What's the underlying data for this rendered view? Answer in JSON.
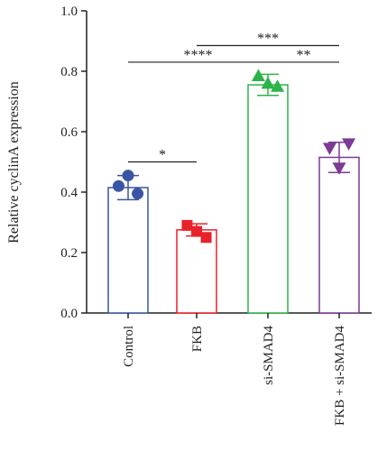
{
  "chart_data": {
    "type": "bar",
    "ylabel": "Relative cyclinA expression",
    "ylim": [
      0,
      1.0
    ],
    "yticks": [
      "0.0",
      "0.2",
      "0.4",
      "0.6",
      "0.8",
      "1.0"
    ],
    "ytick_values": [
      0,
      0.2,
      0.4,
      0.6,
      0.8,
      1.0
    ],
    "categories": [
      "Control",
      "FKB",
      "si-SMAD4",
      "FKB + si-SMAD4"
    ],
    "values": [
      0.415,
      0.275,
      0.755,
      0.515
    ],
    "errors": [
      0.04,
      0.02,
      0.035,
      0.05
    ],
    "colors": [
      "#3a55a6",
      "#e8212b",
      "#2db24a",
      "#7d3a96"
    ],
    "markers": [
      "circle",
      "square",
      "triangle-up",
      "triangle-down"
    ],
    "points": [
      [
        [
          -0.15,
          0.42
        ],
        [
          0.0,
          0.455
        ],
        [
          0.15,
          0.395
        ]
      ],
      [
        [
          -0.15,
          0.29
        ],
        [
          0.0,
          0.27
        ],
        [
          0.15,
          0.25
        ]
      ],
      [
        [
          -0.15,
          0.785
        ],
        [
          0.0,
          0.76
        ],
        [
          0.15,
          0.75
        ]
      ],
      [
        [
          -0.15,
          0.545
        ],
        [
          0.0,
          0.48
        ],
        [
          0.15,
          0.56
        ]
      ]
    ],
    "significance": [
      {
        "from": 0,
        "to": 1,
        "y": 0.5,
        "label": "*"
      },
      {
        "from": 0,
        "to": 2,
        "y": 0.83,
        "label": "****"
      },
      {
        "from": 1,
        "to": 3,
        "y": 0.885,
        "label": "***"
      },
      {
        "from": 2,
        "to": 3,
        "y": 0.83,
        "label": "**"
      }
    ],
    "grid": false,
    "legend": "none"
  }
}
